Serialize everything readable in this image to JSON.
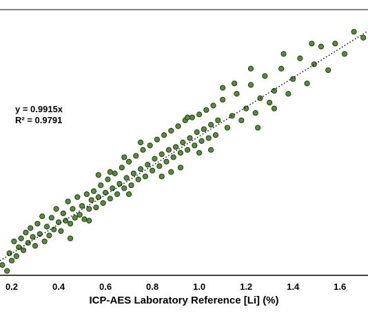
{
  "chart_data": {
    "type": "scatter",
    "xlabel": "ICP-AES Laboratory Reference [Li] (%)",
    "ylabel": "",
    "xlim": [
      0.15,
      1.72
    ],
    "ylim": [
      0.05,
      1.85
    ],
    "x_ticks": [
      "0.2",
      "0.4",
      "0.6",
      "0.8",
      "1.0",
      "1.2",
      "1.4",
      "1.6"
    ],
    "trendline": {
      "slope": 0.9915,
      "intercept": 0,
      "style": "dotted"
    },
    "annotations": {
      "equation": "y = 0.9915x",
      "r_squared": "R² = 0.9791"
    },
    "marker_color": "#5a8a3c",
    "marker_edge": "#1e3a12",
    "points": [
      [
        0.16,
        0.12
      ],
      [
        0.18,
        0.08
      ],
      [
        0.19,
        0.2
      ],
      [
        0.2,
        0.15
      ],
      [
        0.21,
        0.28
      ],
      [
        0.22,
        0.18
      ],
      [
        0.23,
        0.24
      ],
      [
        0.24,
        0.3
      ],
      [
        0.25,
        0.22
      ],
      [
        0.26,
        0.34
      ],
      [
        0.27,
        0.27
      ],
      [
        0.28,
        0.37
      ],
      [
        0.29,
        0.31
      ],
      [
        0.3,
        0.25
      ],
      [
        0.31,
        0.4
      ],
      [
        0.32,
        0.33
      ],
      [
        0.33,
        0.45
      ],
      [
        0.34,
        0.28
      ],
      [
        0.35,
        0.38
      ],
      [
        0.36,
        0.32
      ],
      [
        0.37,
        0.44
      ],
      [
        0.38,
        0.36
      ],
      [
        0.39,
        0.5
      ],
      [
        0.4,
        0.41
      ],
      [
        0.41,
        0.35
      ],
      [
        0.42,
        0.47
      ],
      [
        0.43,
        0.42
      ],
      [
        0.44,
        0.55
      ],
      [
        0.45,
        0.4
      ],
      [
        0.46,
        0.5
      ],
      [
        0.47,
        0.44
      ],
      [
        0.48,
        0.58
      ],
      [
        0.49,
        0.46
      ],
      [
        0.5,
        0.52
      ],
      [
        0.51,
        0.43
      ],
      [
        0.52,
        0.6
      ],
      [
        0.53,
        0.5
      ],
      [
        0.54,
        0.56
      ],
      [
        0.55,
        0.62
      ],
      [
        0.56,
        0.51
      ],
      [
        0.57,
        0.58
      ],
      [
        0.58,
        0.66
      ],
      [
        0.59,
        0.54
      ],
      [
        0.6,
        0.61
      ],
      [
        0.61,
        0.7
      ],
      [
        0.62,
        0.57
      ],
      [
        0.63,
        0.64
      ],
      [
        0.64,
        0.74
      ],
      [
        0.65,
        0.6
      ],
      [
        0.66,
        0.67
      ],
      [
        0.67,
        0.78
      ],
      [
        0.68,
        0.64
      ],
      [
        0.69,
        0.71
      ],
      [
        0.7,
        0.82
      ],
      [
        0.71,
        0.66
      ],
      [
        0.72,
        0.74
      ],
      [
        0.73,
        0.86
      ],
      [
        0.74,
        0.7
      ],
      [
        0.75,
        0.77
      ],
      [
        0.76,
        0.9
      ],
      [
        0.77,
        0.72
      ],
      [
        0.78,
        0.8
      ],
      [
        0.79,
        0.93
      ],
      [
        0.8,
        0.76
      ],
      [
        0.81,
        0.84
      ],
      [
        0.82,
        0.97
      ],
      [
        0.83,
        0.79
      ],
      [
        0.84,
        0.87
      ],
      [
        0.85,
        1.0
      ],
      [
        0.86,
        0.82
      ],
      [
        0.87,
        0.9
      ],
      [
        0.88,
        1.03
      ],
      [
        0.89,
        0.85
      ],
      [
        0.9,
        0.92
      ],
      [
        0.91,
        1.06
      ],
      [
        0.92,
        0.88
      ],
      [
        0.93,
        0.95
      ],
      [
        0.94,
        1.1
      ],
      [
        0.95,
        0.9
      ],
      [
        0.96,
        0.98
      ],
      [
        0.97,
        1.12
      ],
      [
        0.98,
        0.93
      ],
      [
        0.99,
        1.02
      ],
      [
        1.0,
        1.14
      ],
      [
        1.01,
        0.96
      ],
      [
        1.02,
        1.04
      ],
      [
        1.03,
        1.17
      ],
      [
        1.04,
        0.98
      ],
      [
        1.05,
        1.07
      ],
      [
        1.06,
        1.2
      ],
      [
        1.07,
        1.0
      ],
      [
        1.08,
        1.1
      ],
      [
        1.1,
        1.24
      ],
      [
        1.12,
        1.05
      ],
      [
        1.14,
        1.13
      ],
      [
        1.16,
        1.28
      ],
      [
        1.18,
        1.1
      ],
      [
        1.2,
        1.18
      ],
      [
        1.22,
        1.34
      ],
      [
        1.24,
        1.15
      ],
      [
        1.26,
        1.25
      ],
      [
        1.28,
        1.4
      ],
      [
        1.3,
        1.22
      ],
      [
        1.32,
        1.3
      ],
      [
        1.35,
        1.45
      ],
      [
        1.38,
        1.28
      ],
      [
        1.4,
        1.38
      ],
      [
        1.43,
        1.52
      ],
      [
        1.46,
        1.35
      ],
      [
        1.49,
        1.48
      ],
      [
        1.52,
        1.6
      ],
      [
        1.55,
        1.44
      ],
      [
        1.58,
        1.62
      ],
      [
        1.62,
        1.55
      ],
      [
        1.66,
        1.7
      ],
      [
        1.7,
        1.66
      ],
      [
        0.62,
        0.75
      ],
      [
        0.7,
        0.6
      ],
      [
        0.84,
        0.72
      ],
      [
        0.95,
        1.12
      ],
      [
        1.05,
        0.9
      ],
      [
        1.15,
        1.35
      ],
      [
        1.25,
        1.05
      ],
      [
        0.45,
        0.3
      ],
      [
        0.53,
        0.42
      ],
      [
        0.75,
        0.95
      ],
      [
        0.88,
        0.75
      ],
      [
        1.22,
        1.45
      ],
      [
        1.32,
        1.18
      ],
      [
        1.48,
        1.62
      ],
      [
        1.36,
        1.55
      ],
      [
        0.57,
        0.73
      ],
      [
        0.68,
        0.85
      ],
      [
        0.92,
        0.78
      ],
      [
        1.0,
        0.88
      ],
      [
        1.1,
        1.32
      ]
    ]
  }
}
